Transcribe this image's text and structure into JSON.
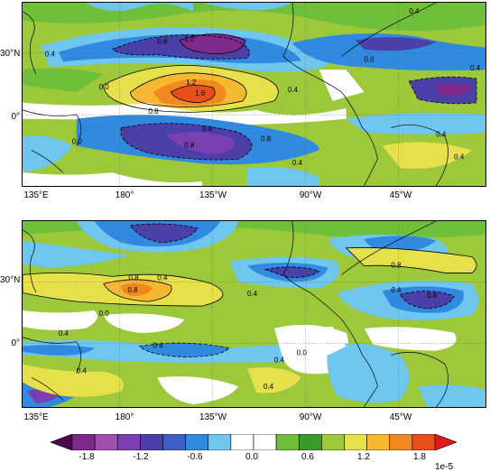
{
  "panels": [
    {
      "id": "top",
      "lat_labels": [
        "30°N",
        "0°"
      ],
      "lon_labels": [
        "135°E",
        "180°",
        "135°W",
        "90°W",
        "45°W"
      ],
      "contour_labels": [
        "0.8",
        "1.2",
        "0.4",
        "0.0",
        "1.2",
        "1.6",
        "0.8",
        "0.4",
        "0.4",
        "0.8",
        "0.4",
        "0.8",
        "0.0",
        "0.0",
        "0.4",
        "0.4",
        "0.4",
        "0.4"
      ]
    },
    {
      "id": "bottom",
      "lat_labels": [
        "30°N",
        "0°"
      ],
      "lon_labels": [
        "135°E",
        "180°",
        "135°W",
        "90°W",
        "45°W"
      ],
      "contour_labels": [
        "0.8",
        "0.4",
        "0.8",
        "0.0",
        "0.4",
        "0.8",
        "0.4",
        "0.8",
        "0.4",
        "0.4",
        "0.4",
        "0.4",
        "0.4",
        "0.0"
      ]
    }
  ],
  "colorbar": {
    "tick_labels": [
      "-1.8",
      "-1.2",
      "-0.6",
      "0.0",
      "0.6",
      "1.2",
      "1.8"
    ],
    "scale_label": "1e-5",
    "colors": [
      "#4a0a4a",
      "#7d2a8c",
      "#a04fb0",
      "#7a3fb0",
      "#4b3fa8",
      "#3e5fc8",
      "#2f8ae0",
      "#6fc6ee",
      "#ffffff",
      "#ffffff",
      "#6fbf3a",
      "#3a9a2a",
      "#9cc83a",
      "#e6e04a",
      "#f5b830",
      "#f08a20",
      "#e84e1a",
      "#e01a1a"
    ]
  }
}
